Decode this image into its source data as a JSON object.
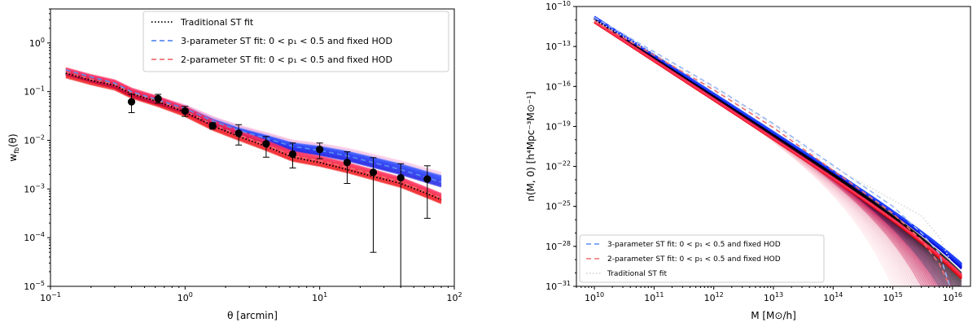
{
  "chart_data": [
    {
      "type": "line",
      "xscale": "log",
      "yscale": "log",
      "xlim": [
        0.1,
        100
      ],
      "ylim": [
        1e-05,
        5
      ],
      "xlabel": "θ [arcmin]",
      "ylabel": "w_fb(θ)",
      "xticks": [
        0.1,
        1,
        10,
        100
      ],
      "xtick_labels": [
        {
          "base": "10",
          "exp": "−1"
        },
        {
          "base": "10",
          "exp": "0"
        },
        {
          "base": "10",
          "exp": "1"
        },
        {
          "base": "10",
          "exp": "2"
        }
      ],
      "yticks": [
        1e-05,
        0.0001,
        0.001,
        0.01,
        0.1,
        1
      ],
      "ytick_labels": [
        {
          "base": "10",
          "exp": "−5"
        },
        {
          "base": "10",
          "exp": "−4"
        },
        {
          "base": "10",
          "exp": "−3"
        },
        {
          "base": "10",
          "exp": "−2"
        },
        {
          "base": "10",
          "exp": "−1"
        },
        {
          "base": "10",
          "exp": "0"
        }
      ],
      "legend_position": "top-right",
      "legend": [
        {
          "label": "Traditional ST fit",
          "style": "dotted",
          "color": "#000000"
        },
        {
          "label": "3-parameter ST fit: 0 < p₁ < 0.5 and fixed HOD",
          "style": "dashed",
          "color": "#5b8ff0"
        },
        {
          "label": "2-parameter ST fit: 0 < p₁ < 0.5 and fixed HOD",
          "style": "dashed",
          "color": "#f07070"
        }
      ],
      "series": [
        {
          "name": "Traditional ST fit",
          "x": [
            0.13,
            0.2,
            0.3,
            0.4,
            0.63,
            1.0,
            1.6,
            2.5,
            4,
            6.3,
            10,
            16,
            25,
            40,
            63,
            80
          ],
          "y": [
            0.24,
            0.17,
            0.135,
            0.09,
            0.062,
            0.038,
            0.02,
            0.012,
            0.0075,
            0.0045,
            0.0035,
            0.0025,
            0.0018,
            0.0013,
            0.0008,
            0.0006
          ]
        },
        {
          "name": "3-parameter ST fit",
          "x": [
            0.13,
            0.2,
            0.3,
            0.4,
            0.63,
            1.0,
            1.6,
            2.5,
            4,
            6.3,
            10,
            16,
            25,
            40,
            63,
            80
          ],
          "y": [
            0.28,
            0.2,
            0.15,
            0.1,
            0.068,
            0.045,
            0.025,
            0.016,
            0.011,
            0.0075,
            0.0062,
            0.0048,
            0.0035,
            0.0025,
            0.0017,
            0.0014
          ]
        },
        {
          "name": "2-parameter ST fit",
          "x": [
            0.13,
            0.2,
            0.3,
            0.4,
            0.63,
            1.0,
            1.6,
            2.5,
            4,
            6.3,
            10,
            16,
            25,
            40,
            63,
            80
          ],
          "y": [
            0.25,
            0.18,
            0.14,
            0.095,
            0.064,
            0.04,
            0.021,
            0.013,
            0.008,
            0.0048,
            0.0038,
            0.0028,
            0.002,
            0.0014,
            0.00085,
            0.00065
          ]
        },
        {
          "name": "data",
          "x": [
            0.4,
            0.63,
            1.0,
            1.6,
            2.5,
            4.0,
            6.3,
            10,
            16,
            25,
            40,
            63
          ],
          "y": [
            0.062,
            0.072,
            0.04,
            0.02,
            0.014,
            0.0085,
            0.0052,
            0.0065,
            0.0035,
            0.0022,
            0.0017,
            0.0016
          ],
          "ylo": [
            0.037,
            0.058,
            0.031,
            0.017,
            0.008,
            0.0045,
            0.0027,
            0.0042,
            0.0013,
            5e-05,
            1e-06,
            0.00025
          ],
          "yhi": [
            0.088,
            0.088,
            0.05,
            0.023,
            0.021,
            0.012,
            0.0088,
            0.0088,
            0.0058,
            0.0044,
            0.0033,
            0.003
          ]
        }
      ]
    },
    {
      "type": "line",
      "xscale": "log",
      "yscale": "log",
      "xlim": [
        5000000000.0,
        2e+16
      ],
      "ylim": [
        1e-31,
        1e-10
      ],
      "xlabel": "M [M⊙/h]",
      "ylabel": "n(M, 0) [h⁴Mpc⁻³M⊙⁻¹]",
      "xticks": [
        10000000000.0,
        100000000000.0,
        1000000000000.0,
        10000000000000.0,
        100000000000000.0,
        1000000000000000.0,
        1e+16
      ],
      "xtick_labels": [
        {
          "base": "10",
          "exp": "10"
        },
        {
          "base": "10",
          "exp": "11"
        },
        {
          "base": "10",
          "exp": "12"
        },
        {
          "base": "10",
          "exp": "13"
        },
        {
          "base": "10",
          "exp": "14"
        },
        {
          "base": "10",
          "exp": "15"
        },
        {
          "base": "10",
          "exp": "16"
        }
      ],
      "yticks": [
        1e-31,
        1e-28,
        1e-25,
        1e-22,
        1e-19,
        1e-16,
        1e-13,
        1e-10
      ],
      "ytick_labels": [
        {
          "base": "10",
          "exp": "−31"
        },
        {
          "base": "10",
          "exp": "−28"
        },
        {
          "base": "10",
          "exp": "−25"
        },
        {
          "base": "10",
          "exp": "−22"
        },
        {
          "base": "10",
          "exp": "−19"
        },
        {
          "base": "10",
          "exp": "−16"
        },
        {
          "base": "10",
          "exp": "−13"
        },
        {
          "base": "10",
          "exp": "−10"
        }
      ],
      "legend_position": "bottom-left",
      "legend": [
        {
          "label": "3-parameter ST fit: 0 < p₁ < 0.5 and fixed HOD",
          "style": "dashed",
          "color": "#5b8ff0"
        },
        {
          "label": "2-parameter ST fit: 0 < p₁ < 0.5 and fixed HOD",
          "style": "dashed",
          "color": "#f07070"
        },
        {
          "label": "Traditional ST fit",
          "style": "dotted",
          "color": "#cccccc"
        }
      ],
      "series": [
        {
          "name": "3-parameter ST fit",
          "x": [
            10000000000.0,
            100000000000.0,
            1000000000000.0,
            10000000000000.0,
            100000000000000.0,
            1000000000000000.0,
            3000000000000000.0,
            6000000000000000.0,
            9000000000000000.0
          ],
          "y": [
            1.5e-11,
            4e-14,
            1e-16,
            1.6e-19,
            1.2e-22,
            1e-25,
            1e-27,
            3e-29,
            1e-31
          ]
        },
        {
          "name": "2-parameter ST fit",
          "x": [
            10000000000.0,
            100000000000.0,
            1000000000000.0,
            10000000000000.0,
            100000000000000.0,
            1000000000000000.0,
            3000000000000000.0,
            6000000000000000.0,
            9000000000000000.0
          ],
          "y": [
            8e-12,
            2.2e-14,
            5.5e-17,
            8e-20,
            5e-23,
            3e-26,
            3e-28,
            5e-30,
            1e-31
          ]
        },
        {
          "name": "Traditional ST fit",
          "x": [
            10000000000.0,
            100000000000.0,
            1000000000000.0,
            10000000000000.0,
            100000000000000.0,
            1000000000000000.0,
            3000000000000000.0,
            6000000000000000.0,
            9000000000000000.0
          ],
          "y": [
            1e-11,
            3e-14,
            8e-17,
            1.2e-19,
            9e-23,
            3e-25,
            2e-26,
            5e-28,
            1e-29
          ]
        }
      ]
    }
  ]
}
